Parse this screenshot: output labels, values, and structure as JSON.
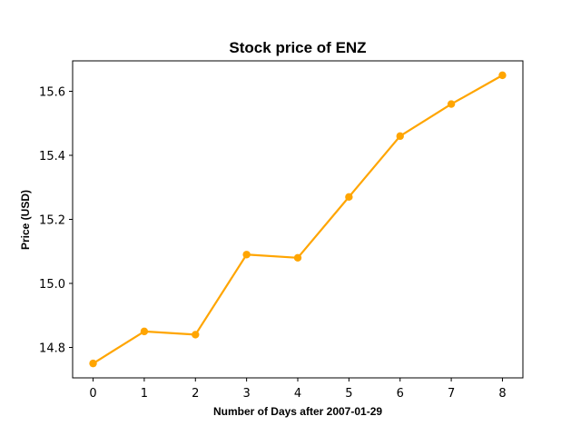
{
  "chart_data": {
    "type": "line",
    "title": "Stock price of ENZ",
    "xlabel": "Number of Days after 2007-01-29",
    "ylabel": "Price (USD)",
    "x": [
      0,
      1,
      2,
      3,
      4,
      5,
      6,
      7,
      8
    ],
    "series": [
      {
        "values": [
          14.75,
          14.85,
          14.84,
          15.09,
          15.08,
          15.27,
          15.46,
          15.56,
          15.65
        ]
      }
    ],
    "xlim": [
      -0.4,
      8.4
    ],
    "ylim": [
      14.705,
      15.695
    ],
    "xticks": [
      "0",
      "1",
      "2",
      "3",
      "4",
      "5",
      "6",
      "7",
      "8"
    ],
    "yticks": [
      "14.8",
      "15.0",
      "15.2",
      "15.4",
      "15.6"
    ],
    "grid": false,
    "color": "#FFA500"
  }
}
